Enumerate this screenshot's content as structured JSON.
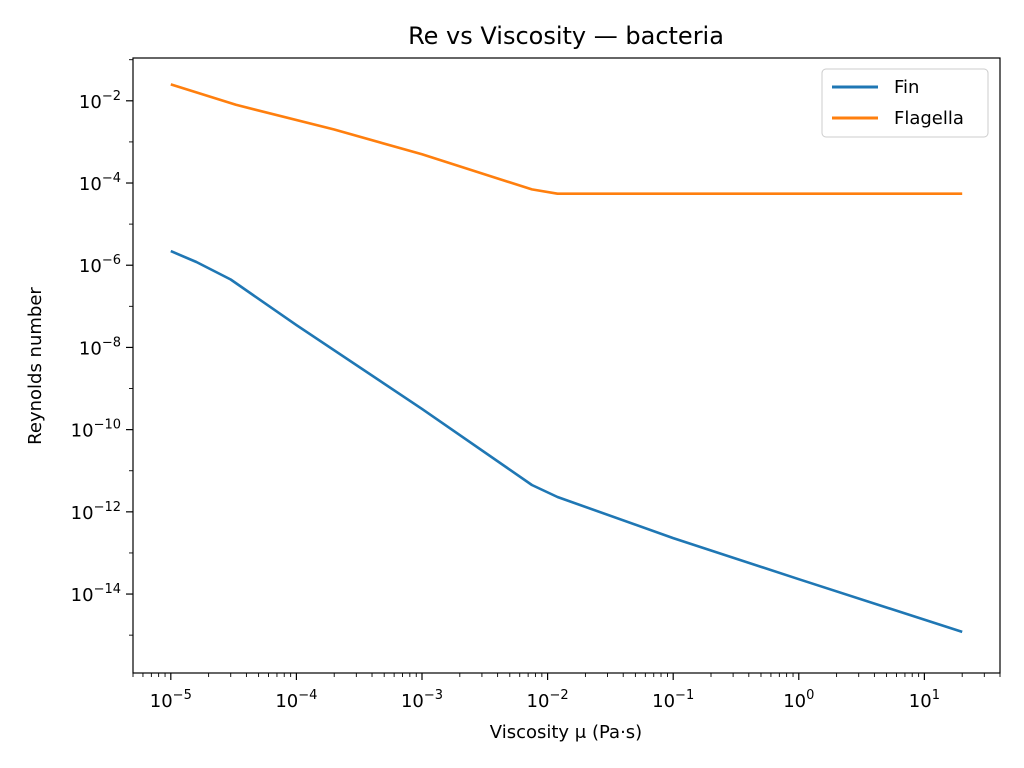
{
  "chart_data": {
    "type": "line",
    "title": "Re vs Viscosity — bacteria",
    "xlabel": "Viscosity μ (Pa·s)",
    "ylabel": "Reynolds number",
    "xscale": "log",
    "yscale": "log",
    "xlim": [
      5e-06,
      40
    ],
    "ylim": [
      1.2e-16,
      0.11
    ],
    "xticks": [
      {
        "exp": "−5",
        "value": 1e-05
      },
      {
        "exp": "−4",
        "value": 0.0001
      },
      {
        "exp": "−3",
        "value": 0.001
      },
      {
        "exp": "−2",
        "value": 0.01
      },
      {
        "exp": "−1",
        "value": 0.1
      },
      {
        "exp": "0",
        "value": 1
      },
      {
        "exp": "1",
        "value": 10
      }
    ],
    "yticks": [
      {
        "exp": "−2",
        "value": 0.01
      },
      {
        "exp": "−4",
        "value": 0.0001
      },
      {
        "exp": "−6",
        "value": 1e-06
      },
      {
        "exp": "−8",
        "value": 1e-08
      },
      {
        "exp": "−10",
        "value": 1e-10
      },
      {
        "exp": "−12",
        "value": 1e-12
      },
      {
        "exp": "−14",
        "value": 1e-14
      }
    ],
    "grid": false,
    "legend_position": "top-right",
    "series": [
      {
        "name": "Fin",
        "color": "#1f77b4",
        "x": [
          1e-05,
          1.6e-05,
          3e-05,
          0.0001,
          0.001,
          0.0075,
          0.012,
          0.1,
          1,
          20
        ],
        "y": [
          2.2e-06,
          1.2e-06,
          4.5e-07,
          3.5e-08,
          3.2e-10,
          4.5e-12,
          2.3e-12,
          2.3e-13,
          2.3e-14,
          1.2e-15
        ]
      },
      {
        "name": "Flagella",
        "color": "#ff7f0e",
        "x": [
          1e-05,
          3.3e-05,
          0.0002,
          0.001,
          0.0075,
          0.012,
          0.1,
          1,
          20
        ],
        "y": [
          0.025,
          0.008,
          0.002,
          0.0005,
          7e-05,
          5.5e-05,
          5.5e-05,
          5.5e-05,
          5.5e-05
        ]
      }
    ]
  }
}
